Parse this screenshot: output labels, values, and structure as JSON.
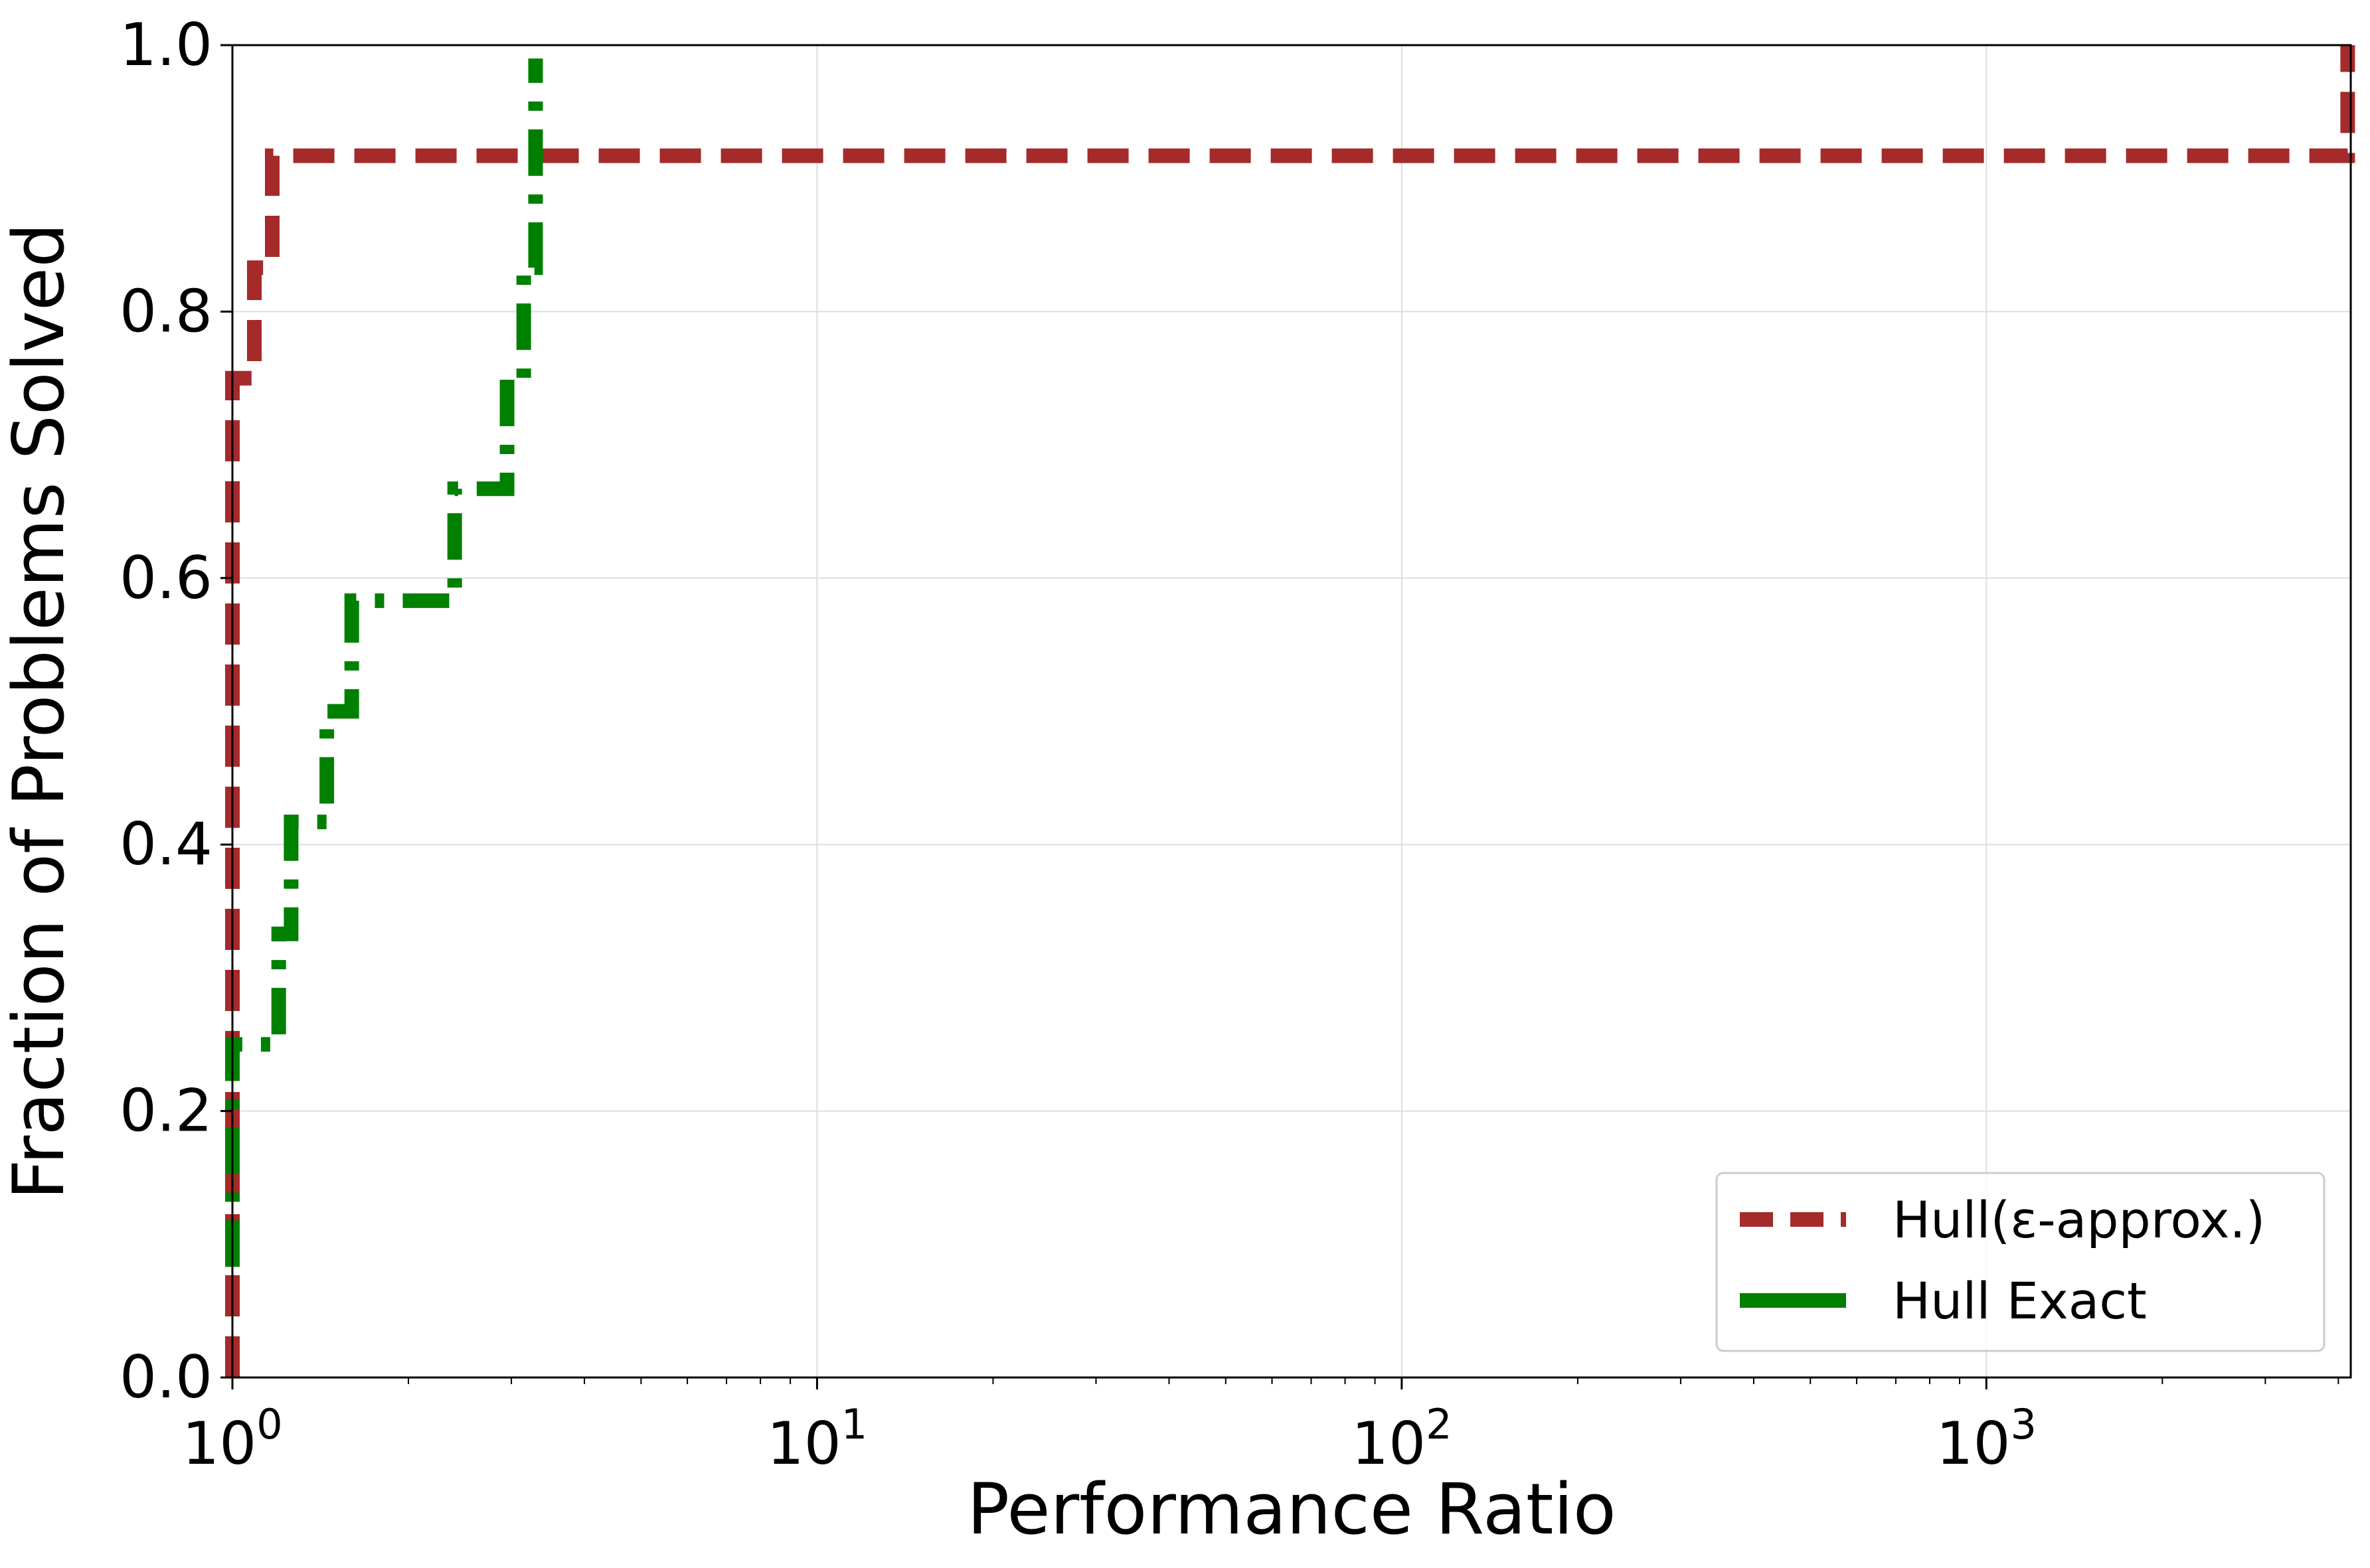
{
  "chart_data": {
    "type": "line",
    "title": "",
    "xlabel": "Performance Ratio",
    "ylabel": "Fraction of Problems Solved",
    "x_scale": "log",
    "xlim": [
      1,
      4200
    ],
    "ylim": [
      0,
      1.0
    ],
    "x_ticks": [
      {
        "value": 1,
        "label_base": "10",
        "label_exp": "0"
      },
      {
        "value": 10,
        "label_base": "10",
        "label_exp": "1"
      },
      {
        "value": 100,
        "label_base": "10",
        "label_exp": "2"
      },
      {
        "value": 1000,
        "label_base": "10",
        "label_exp": "3"
      }
    ],
    "y_ticks": [
      {
        "value": 0.0,
        "label": "0.0"
      },
      {
        "value": 0.2,
        "label": "0.2"
      },
      {
        "value": 0.4,
        "label": "0.4"
      },
      {
        "value": 0.6,
        "label": "0.6"
      },
      {
        "value": 0.8,
        "label": "0.8"
      },
      {
        "value": 1.0,
        "label": "1.0"
      }
    ],
    "grid": true,
    "legend_position": "bottom-right",
    "series": [
      {
        "name": "Hull(ε-approx.)",
        "color": "#a52a2a",
        "style": "dashed",
        "step_points": [
          [
            1.0,
            0.0
          ],
          [
            1.0,
            0.75
          ],
          [
            1.09,
            0.75
          ],
          [
            1.09,
            0.833
          ],
          [
            1.17,
            0.833
          ],
          [
            1.17,
            0.917
          ],
          [
            4150,
            0.917
          ],
          [
            4150,
            1.0
          ]
        ]
      },
      {
        "name": "Hull Exact",
        "color": "#008000",
        "style": "dashdot",
        "step_points": [
          [
            1.0,
            0.083
          ],
          [
            1.0,
            0.25
          ],
          [
            1.2,
            0.25
          ],
          [
            1.2,
            0.333
          ],
          [
            1.26,
            0.333
          ],
          [
            1.26,
            0.417
          ],
          [
            1.45,
            0.417
          ],
          [
            1.45,
            0.5
          ],
          [
            1.6,
            0.5
          ],
          [
            1.6,
            0.583
          ],
          [
            2.4,
            0.583
          ],
          [
            2.4,
            0.667
          ],
          [
            2.95,
            0.667
          ],
          [
            2.95,
            0.75
          ],
          [
            3.15,
            0.75
          ],
          [
            3.15,
            0.833
          ],
          [
            3.3,
            0.833
          ],
          [
            3.3,
            0.99
          ]
        ]
      }
    ]
  }
}
